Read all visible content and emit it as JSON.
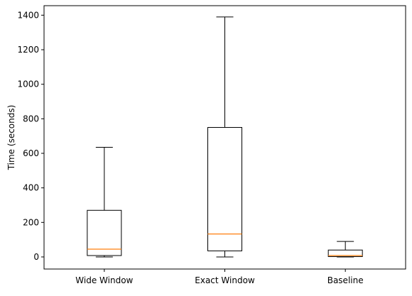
{
  "chart_data": {
    "type": "box",
    "title": "",
    "xlabel": "",
    "ylabel": "Time (seconds)",
    "ylim": [
      -70,
      1455
    ],
    "yticks": [
      0,
      200,
      400,
      600,
      800,
      1000,
      1200,
      1400
    ],
    "categories": [
      "Wide Window",
      "Exact Window",
      "Baseline"
    ],
    "boxes": [
      {
        "label": "Wide Window",
        "whisker_low": 0,
        "q1": 8,
        "median": 45,
        "q3": 270,
        "whisker_high": 635
      },
      {
        "label": "Exact Window",
        "whisker_low": 0,
        "q1": 35,
        "median": 133,
        "q3": 750,
        "whisker_high": 1390
      },
      {
        "label": "Baseline",
        "whisker_low": 0,
        "q1": 2,
        "median": 8,
        "q3": 40,
        "whisker_high": 90
      }
    ],
    "colors": {
      "box": "#000000",
      "median": "#ff7f0e"
    },
    "grid": false
  }
}
